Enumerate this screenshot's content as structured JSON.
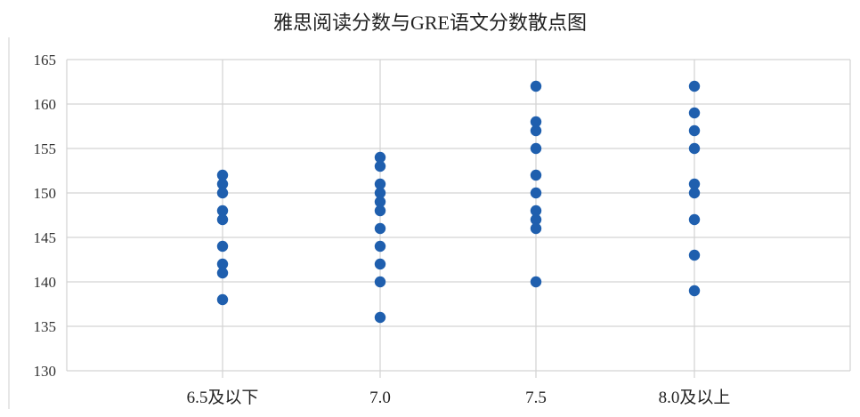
{
  "chart_data": {
    "type": "scatter",
    "title": "雅思阅读分数与GRE语文分数散点图",
    "xlabel": "",
    "ylabel": "",
    "categories": [
      "6.5及以下",
      "7.0",
      "7.5",
      "8.0及以上"
    ],
    "ylim": [
      130,
      165
    ],
    "yticks": [
      130,
      135,
      140,
      145,
      150,
      155,
      160,
      165
    ],
    "grid": true,
    "marker_color": "#1f5fae",
    "points": [
      {
        "category": "6.5及以下",
        "values": [
          152,
          151,
          150,
          148,
          147,
          144,
          142,
          141,
          138
        ]
      },
      {
        "category": "7.0",
        "values": [
          154,
          153,
          151,
          150,
          149,
          148,
          146,
          144,
          142,
          140,
          136
        ]
      },
      {
        "category": "7.5",
        "values": [
          162,
          158,
          157,
          155,
          152,
          150,
          148,
          147,
          146,
          140
        ]
      },
      {
        "category": "8.0及以上",
        "values": [
          162,
          159,
          157,
          155,
          151,
          150,
          147,
          143,
          139
        ]
      }
    ]
  }
}
